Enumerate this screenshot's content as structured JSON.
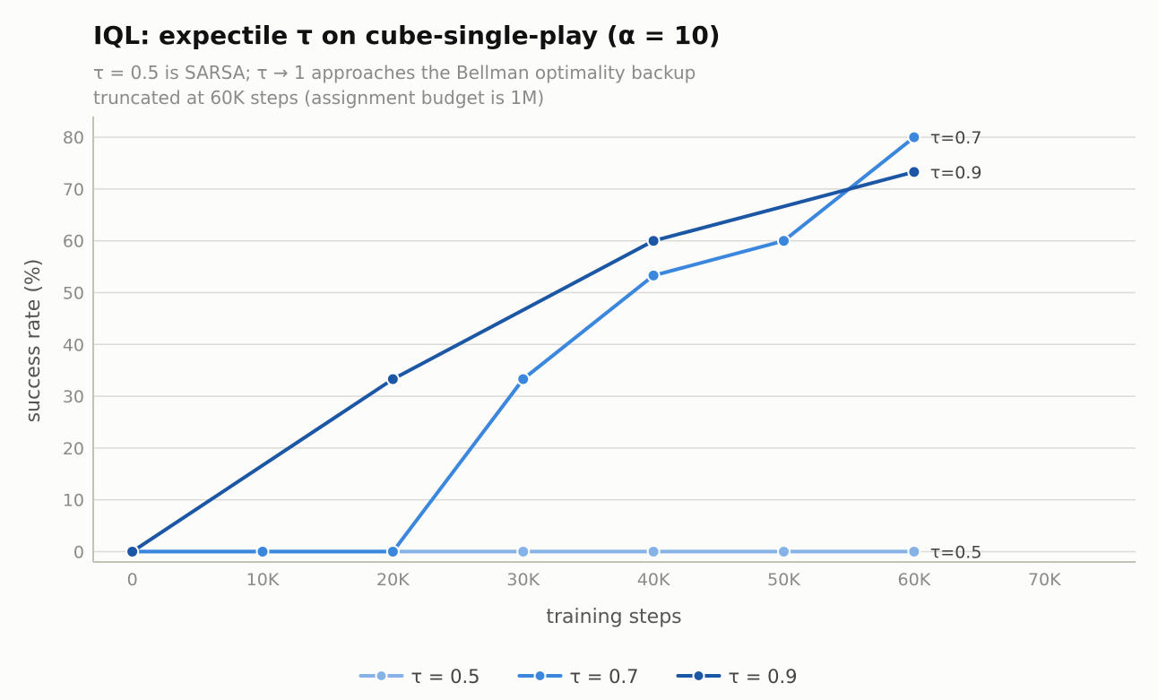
{
  "chart_data": {
    "type": "line",
    "title": "IQL: expectile τ on cube-single-play (α = 10)",
    "subtitle": [
      "τ = 0.5 is SARSA; τ → 1 approaches the Bellman optimality backup",
      "truncated at 60K steps (assignment budget is 1M)"
    ],
    "xlabel": "training steps",
    "ylabel": "success rate (%)",
    "xlim": [
      -3000,
      77000
    ],
    "ylim": [
      -2,
      84
    ],
    "xticks": [
      0,
      10000,
      20000,
      30000,
      40000,
      50000,
      60000,
      70000
    ],
    "xtick_labels": [
      "0",
      "10K",
      "20K",
      "30K",
      "40K",
      "50K",
      "60K",
      "70K"
    ],
    "yticks": [
      0,
      10,
      20,
      30,
      40,
      50,
      60,
      70,
      80
    ],
    "ytick_labels": [
      "0",
      "10",
      "20",
      "30",
      "40",
      "50",
      "60",
      "70",
      "80"
    ],
    "grid": "horizontal",
    "legend": "bottom-center",
    "series": [
      {
        "name": "τ = 0.5",
        "end_label": "τ=0.5",
        "color": "#85b3e8",
        "x": [
          0,
          10000,
          20000,
          30000,
          40000,
          50000,
          60000
        ],
        "y": [
          0,
          0,
          0,
          0,
          0,
          0,
          0
        ]
      },
      {
        "name": "τ = 0.7",
        "end_label": "τ=0.7",
        "color": "#3a87dd",
        "x": [
          0,
          10000,
          20000,
          30000,
          40000,
          50000,
          60000
        ],
        "y": [
          0,
          0,
          0,
          33.3,
          53.3,
          60,
          80
        ]
      },
      {
        "name": "τ = 0.9",
        "end_label": "τ=0.9",
        "color": "#1c57a5",
        "x": [
          0,
          20000,
          40000,
          60000
        ],
        "y": [
          0,
          33.3,
          60,
          73.3
        ]
      }
    ]
  }
}
